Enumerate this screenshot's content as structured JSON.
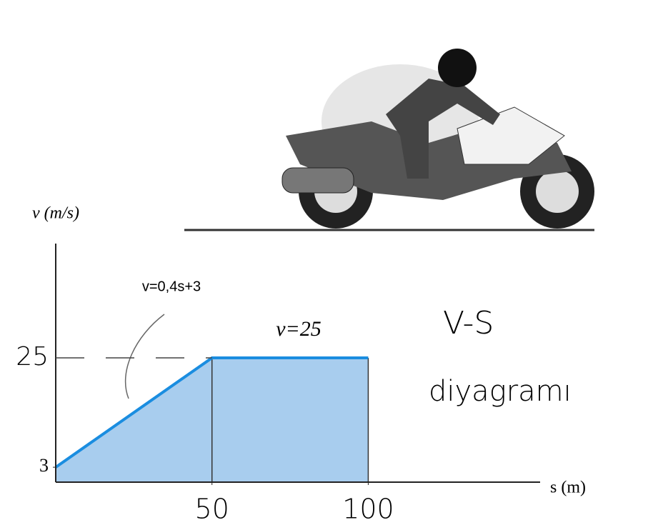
{
  "chart_data": {
    "type": "area",
    "y_label": "v (m/s)",
    "x_label": "s (m)",
    "x": [
      0,
      50,
      100
    ],
    "series": [
      {
        "values": [
          3,
          25,
          25
        ],
        "color": "#1a8de0",
        "fill": "#a8cdee"
      }
    ],
    "xlim": [
      0,
      155
    ],
    "ylim": [
      0,
      48
    ],
    "xticks": [
      50,
      100
    ],
    "yticks": [
      3,
      25
    ],
    "annotations": [
      "v=0,4s+3",
      "v=25"
    ],
    "side_title": [
      "V-S",
      "diyagramı"
    ]
  }
}
